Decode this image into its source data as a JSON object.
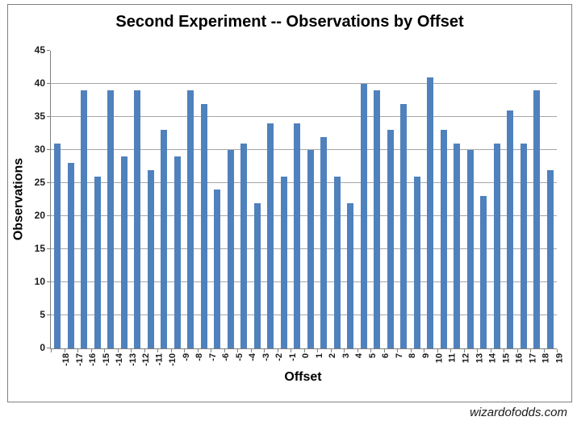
{
  "chart": {
    "title": "Second Experiment -- Observations by Offset",
    "watermark": "wizardofodds.com"
  },
  "chart_data": {
    "type": "bar",
    "title": "Second Experiment -- Observations by Offset",
    "xlabel": "Offset",
    "ylabel": "Observations",
    "categories": [
      "-18",
      "-17",
      "-16",
      "-15",
      "-14",
      "-13",
      "-12",
      "-11",
      "-10",
      "-9",
      "-8",
      "-7",
      "-6",
      "-5",
      "-4",
      "-3",
      "-2",
      "-1",
      "0",
      "1",
      "2",
      "3",
      "4",
      "5",
      "6",
      "7",
      "8",
      "9",
      "10",
      "11",
      "12",
      "13",
      "14",
      "15",
      "16",
      "17",
      "18",
      "19"
    ],
    "values": [
      31,
      28,
      39,
      26,
      39,
      29,
      39,
      27,
      33,
      29,
      39,
      37,
      24,
      30,
      31,
      22,
      34,
      26,
      34,
      30,
      32,
      26,
      22,
      40,
      39,
      33,
      37,
      26,
      41,
      33,
      31,
      30,
      23,
      31,
      36,
      31,
      39,
      27
    ],
    "ylim": [
      0,
      45
    ],
    "ytick_step": 5,
    "grid": true,
    "legend": "none",
    "bar_color": "#4F81BD",
    "gridline_color": "#a6a6a6",
    "axis_color": "#808080",
    "watermark": "wizardofodds.com"
  }
}
